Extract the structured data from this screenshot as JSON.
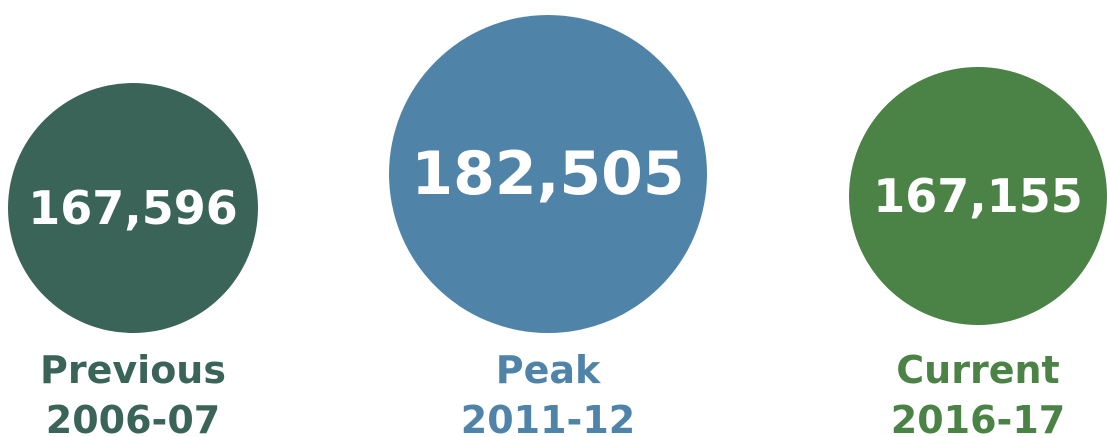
{
  "chart_data": {
    "type": "bubble",
    "items": [
      {
        "label": "Previous",
        "period": "2006-07",
        "value": 167596,
        "value_text": "167,596",
        "color": "#3b6459"
      },
      {
        "label": "Peak",
        "period": "2011-12",
        "value": 182505,
        "value_text": "182,505",
        "color": "#4f84a8"
      },
      {
        "label": "Current",
        "period": "2016-17",
        "value": 167155,
        "value_text": "167,155",
        "color": "#4b8245"
      }
    ]
  }
}
